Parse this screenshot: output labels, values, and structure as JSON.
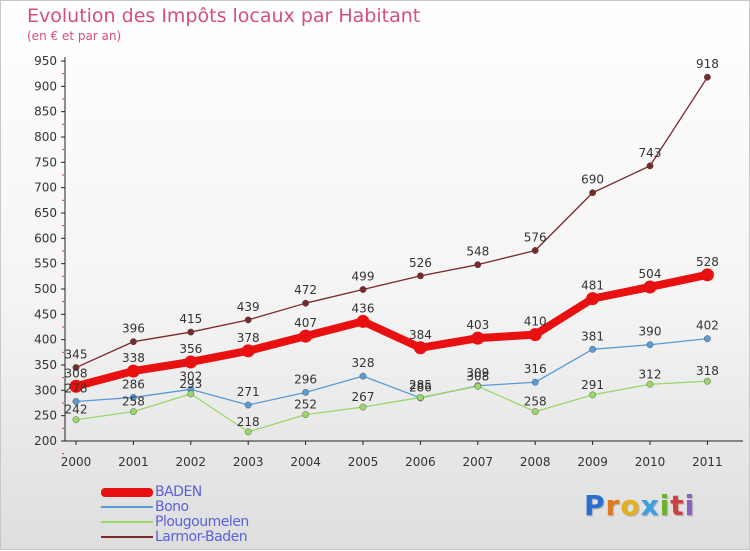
{
  "title": "Evolution des Impôts locaux par Habitant",
  "subtitle": "(en € et par an)",
  "brand": {
    "letters": [
      "P",
      "r",
      "o",
      "x",
      "i",
      "t",
      "i"
    ],
    "colors": [
      "#2a6fd0",
      "#e07a20",
      "#e5b020",
      "#3aa0e0",
      "#70b030",
      "#d04040",
      "#8a60c0"
    ]
  },
  "chart_data": {
    "type": "line",
    "title": "Evolution des Impôts locaux par Habitant",
    "subtitle": "(en € et par an)",
    "x": [
      "2000",
      "2001",
      "2002",
      "2003",
      "2004",
      "2005",
      "2006",
      "2007",
      "2008",
      "2009",
      "2010",
      "2011"
    ],
    "ylim": [
      200,
      950
    ],
    "yticks": [
      "200",
      "250",
      "300",
      "350",
      "400",
      "450",
      "500",
      "550",
      "600",
      "650",
      "700",
      "750",
      "800",
      "850",
      "900",
      "950"
    ],
    "grid": false,
    "legend_position": "bottom-left",
    "series": [
      {
        "name": "BADEN",
        "color": "#e81010",
        "values": [
          308,
          338,
          356,
          378,
          407,
          436,
          384,
          403,
          410,
          481,
          504,
          528
        ],
        "labels": [
          "308",
          "338",
          "356",
          "378",
          "407",
          "436",
          "384",
          "403",
          "410",
          "481",
          "504",
          "528"
        ]
      },
      {
        "name": "Bono",
        "color": "#5b9ad4",
        "values": [
          278,
          286,
          302,
          271,
          296,
          328,
          285,
          309,
          316,
          381,
          390,
          402
        ],
        "labels": [
          "278",
          "286",
          "302",
          "271",
          "296",
          "328",
          "285",
          "309",
          "316",
          "381",
          "390",
          "402"
        ]
      },
      {
        "name": "Plougoumelen",
        "color": "#9ad868",
        "values": [
          242,
          258,
          293,
          218,
          252,
          267,
          286,
          308,
          258,
          291,
          312,
          318
        ],
        "labels": [
          "242",
          "258",
          "293",
          "218",
          "252",
          "267",
          "286",
          "308",
          "258",
          "291",
          "312",
          "318"
        ]
      },
      {
        "name": "Larmor-Baden",
        "color": "#7a2a2a",
        "values": [
          345,
          396,
          415,
          439,
          472,
          499,
          526,
          548,
          576,
          690,
          743,
          918
        ],
        "labels": [
          "345",
          "396",
          "415",
          "439",
          "472",
          "499",
          "526",
          "548",
          "576",
          "690",
          "743",
          "918"
        ]
      }
    ]
  }
}
